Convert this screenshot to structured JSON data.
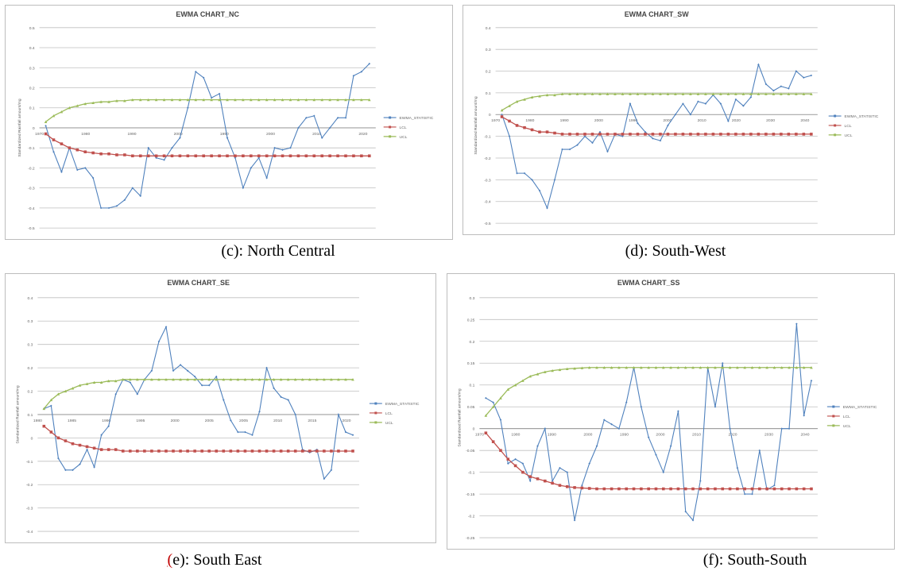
{
  "colors": {
    "statistic": "#4f81bd",
    "lcl": "#c0504d",
    "ucl": "#9bbb59",
    "grid": "#bfbfbf",
    "axis": "#8c8c8c"
  },
  "captions": {
    "c": {
      "paren": "(",
      "text": "c): North Central"
    },
    "d": {
      "paren": "(",
      "text": "d): South-West"
    },
    "e": {
      "paren": "(",
      "text": "e): South East"
    },
    "f": {
      "paren": "(",
      "text": "f): South-South"
    }
  },
  "chart_data": [
    {
      "id": "c",
      "type": "line",
      "title": "EWMA CHART_NC",
      "ylabel": "Standardized Rainfall amount/mg",
      "ylim": [
        -0.5,
        0.5
      ],
      "yticks": [
        "0.5",
        "0.4",
        "0.3",
        "0.2",
        "0.1",
        "0",
        "-0.1",
        "-0.2",
        "-0.3",
        "-0.4",
        "-0.5"
      ],
      "x_start": 1970,
      "xticks": [
        "1970",
        "1980",
        "1990",
        "2000",
        "1990",
        "2000",
        "2010",
        "2020"
      ],
      "legend": [
        "EWMA_STATISTIC",
        "LCL",
        "UCL"
      ],
      "series": [
        {
          "name": "EWMA_STATISTIC",
          "values": [
            0.01,
            -0.12,
            -0.22,
            -0.1,
            -0.21,
            -0.2,
            -0.25,
            -0.4,
            -0.4,
            -0.39,
            -0.36,
            -0.3,
            -0.34,
            -0.1,
            -0.15,
            -0.16,
            -0.1,
            -0.05,
            0.1,
            0.28,
            0.25,
            0.15,
            0.17,
            -0.05,
            -0.15,
            -0.3,
            -0.2,
            -0.15,
            -0.25,
            -0.1,
            -0.11,
            -0.1,
            0.0,
            0.05,
            0.06,
            -0.05,
            0,
            0.05,
            0.05,
            0.26,
            0.28,
            0.32
          ]
        },
        {
          "name": "LCL",
          "values": [
            -0.03,
            -0.06,
            -0.08,
            -0.1,
            -0.11,
            -0.12,
            -0.125,
            -0.13,
            -0.13,
            -0.135,
            -0.135,
            -0.14,
            -0.14,
            -0.14,
            -0.14,
            -0.14,
            -0.14,
            -0.14,
            -0.14,
            -0.14,
            -0.14,
            -0.14,
            -0.14,
            -0.14,
            -0.14,
            -0.14,
            -0.14,
            -0.14,
            -0.14,
            -0.14,
            -0.14,
            -0.14,
            -0.14,
            -0.14,
            -0.14,
            -0.14,
            -0.14,
            -0.14,
            -0.14,
            -0.14,
            -0.14,
            -0.14
          ]
        },
        {
          "name": "UCL",
          "values": [
            0.03,
            0.06,
            0.08,
            0.1,
            0.11,
            0.12,
            0.125,
            0.13,
            0.13,
            0.135,
            0.135,
            0.14,
            0.14,
            0.14,
            0.14,
            0.14,
            0.14,
            0.14,
            0.14,
            0.14,
            0.14,
            0.14,
            0.14,
            0.14,
            0.14,
            0.14,
            0.14,
            0.14,
            0.14,
            0.14,
            0.14,
            0.14,
            0.14,
            0.14,
            0.14,
            0.14,
            0.14,
            0.14,
            0.14,
            0.14,
            0.14,
            0.14
          ]
        }
      ]
    },
    {
      "id": "d",
      "type": "line",
      "title": "EWMA CHART_SW",
      "ylabel": "Standardized Rainfall amount/mg",
      "ylim": [
        -0.5,
        0.4
      ],
      "yticks": [
        "0.4",
        "0.3",
        "0.2",
        "0.1",
        "0",
        "-0.1",
        "-0.2",
        "-0.3",
        "-0.4",
        "-0.5"
      ],
      "x_start": 1970,
      "xticks": [
        "1970",
        "1980",
        "1990",
        "2000",
        "1990",
        "2000",
        "2010",
        "2020",
        "2030",
        "2040"
      ],
      "legend": [
        "EWMA_STATISTIC",
        "LCL",
        "UCL"
      ],
      "series": [
        {
          "name": "EWMA_STATISTIC",
          "values": [
            0.0,
            -0.1,
            -0.27,
            -0.27,
            -0.3,
            -0.35,
            -0.43,
            -0.3,
            -0.16,
            -0.16,
            -0.14,
            -0.1,
            -0.13,
            -0.08,
            -0.17,
            -0.09,
            -0.1,
            0.05,
            -0.04,
            -0.08,
            -0.11,
            -0.12,
            -0.05,
            0.0,
            0.05,
            0.0,
            0.06,
            0.05,
            0.09,
            0.05,
            -0.03,
            0.07,
            0.04,
            0.08,
            0.23,
            0.14,
            0.11,
            0.13,
            0.12,
            0.2,
            0.17,
            0.18
          ]
        },
        {
          "name": "LCL",
          "values": [
            -0.01,
            -0.03,
            -0.05,
            -0.06,
            -0.07,
            -0.08,
            -0.08,
            -0.085,
            -0.09,
            -0.09,
            -0.09,
            -0.09,
            -0.09,
            -0.09,
            -0.09,
            -0.09,
            -0.09,
            -0.09,
            -0.09,
            -0.09,
            -0.09,
            -0.09,
            -0.09,
            -0.09,
            -0.09,
            -0.09,
            -0.09,
            -0.09,
            -0.09,
            -0.09,
            -0.09,
            -0.09,
            -0.09,
            -0.09,
            -0.09,
            -0.09,
            -0.09,
            -0.09,
            -0.09,
            -0.09,
            -0.09,
            -0.09
          ]
        },
        {
          "name": "UCL",
          "values": [
            0.02,
            0.04,
            0.06,
            0.07,
            0.08,
            0.085,
            0.09,
            0.09,
            0.095,
            0.095,
            0.095,
            0.095,
            0.095,
            0.095,
            0.095,
            0.095,
            0.095,
            0.095,
            0.095,
            0.095,
            0.095,
            0.095,
            0.095,
            0.095,
            0.095,
            0.095,
            0.095,
            0.095,
            0.095,
            0.095,
            0.095,
            0.095,
            0.095,
            0.095,
            0.095,
            0.095,
            0.095,
            0.095,
            0.095,
            0.095,
            0.095,
            0.095
          ]
        }
      ]
    },
    {
      "id": "e",
      "type": "line",
      "title": "EWMA CHART_SE",
      "ylabel": "Standardized Rainfall amount/mg",
      "ylim": [
        -0.4,
        0.4
      ],
      "yticks": [
        "0.4",
        "0.3",
        "0.3",
        "0.2",
        "0.2",
        "0.1",
        "0",
        "-0.1",
        "-0.2",
        "-0.3",
        "-0.4"
      ],
      "x_start": 1980,
      "xticks": [
        "1980",
        "1985",
        "1990",
        "1995",
        "2000",
        "2005",
        "2005",
        "2010",
        "2015",
        "2020"
      ],
      "legend": [
        "EWMA_STATISTIC",
        "LCL",
        "UCL"
      ],
      "series": [
        {
          "name": "EWMA_STATISTIC",
          "values": [
            0.02,
            0.03,
            -0.15,
            -0.19,
            -0.19,
            -0.17,
            -0.12,
            -0.18,
            -0.07,
            -0.04,
            0.07,
            0.12,
            0.11,
            0.07,
            0.12,
            0.15,
            0.25,
            0.3,
            0.15,
            0.17,
            0.15,
            0.13,
            0.1,
            0.1,
            0.13,
            0.05,
            -0.02,
            -0.06,
            -0.06,
            -0.07,
            0.01,
            0.16,
            0.09,
            0.06,
            0.05,
            0.0,
            -0.12,
            -0.13,
            -0.12,
            -0.22,
            -0.19,
            0.0,
            -0.06,
            -0.07
          ]
        },
        {
          "name": "LCL",
          "values": [
            -0.04,
            -0.06,
            -0.08,
            -0.09,
            -0.1,
            -0.105,
            -0.11,
            -0.115,
            -0.12,
            -0.12,
            -0.12,
            -0.125,
            -0.125,
            -0.125,
            -0.125,
            -0.125,
            -0.125,
            -0.125,
            -0.125,
            -0.125,
            -0.125,
            -0.125,
            -0.125,
            -0.125,
            -0.125,
            -0.125,
            -0.125,
            -0.125,
            -0.125,
            -0.125,
            -0.125,
            -0.125,
            -0.125,
            -0.125,
            -0.125,
            -0.125,
            -0.125,
            -0.125,
            -0.125,
            -0.125,
            -0.125,
            -0.125,
            -0.125,
            -0.125
          ]
        },
        {
          "name": "UCL",
          "values": [
            0.02,
            0.05,
            0.07,
            0.08,
            0.09,
            0.1,
            0.105,
            0.11,
            0.11,
            0.115,
            0.115,
            0.12,
            0.12,
            0.12,
            0.12,
            0.12,
            0.12,
            0.12,
            0.12,
            0.12,
            0.12,
            0.12,
            0.12,
            0.12,
            0.12,
            0.12,
            0.12,
            0.12,
            0.12,
            0.12,
            0.12,
            0.12,
            0.12,
            0.12,
            0.12,
            0.12,
            0.12,
            0.12,
            0.12,
            0.12,
            0.12,
            0.12,
            0.12,
            0.12
          ]
        }
      ]
    },
    {
      "id": "f",
      "type": "line",
      "title": "EWMA CHART_SS",
      "ylabel": "Standardized Rainfall amount/mg",
      "ylim": [
        -0.25,
        0.3
      ],
      "yticks": [
        "0.3",
        "0.25",
        "0.2",
        "0.15",
        "0.1",
        "0.05",
        "0",
        "-0.05",
        "-0.1",
        "-0.15",
        "-0.2",
        "-0.25"
      ],
      "x_start": 1970,
      "xticks": [
        "1970",
        "1980",
        "1990",
        "2000",
        "1990",
        "2000",
        "2010",
        "2020",
        "2030",
        "2040"
      ],
      "legend": [
        "EWMA_STATISTIC",
        "LCL",
        "UCL"
      ],
      "series": [
        {
          "name": "EWMA_STATISTIC",
          "values": [
            0.07,
            0.06,
            0.02,
            -0.08,
            -0.07,
            -0.08,
            -0.12,
            -0.04,
            0.0,
            -0.12,
            -0.09,
            -0.1,
            -0.21,
            -0.13,
            -0.08,
            -0.04,
            0.02,
            0.01,
            0.0,
            0.06,
            0.14,
            0.05,
            -0.02,
            -0.06,
            -0.1,
            -0.04,
            0.04,
            -0.19,
            -0.21,
            -0.12,
            0.14,
            0.05,
            0.15,
            0.0,
            -0.09,
            -0.15,
            -0.15,
            -0.05,
            -0.14,
            -0.13,
            0.0,
            0.0,
            0.24,
            0.03,
            0.11
          ]
        },
        {
          "name": "LCL",
          "values": [
            -0.01,
            -0.03,
            -0.05,
            -0.07,
            -0.085,
            -0.1,
            -0.11,
            -0.115,
            -0.12,
            -0.125,
            -0.13,
            -0.133,
            -0.135,
            -0.136,
            -0.137,
            -0.138,
            -0.138,
            -0.138,
            -0.138,
            -0.138,
            -0.138,
            -0.138,
            -0.138,
            -0.138,
            -0.138,
            -0.138,
            -0.138,
            -0.138,
            -0.138,
            -0.138,
            -0.138,
            -0.138,
            -0.138,
            -0.138,
            -0.138,
            -0.138,
            -0.138,
            -0.138,
            -0.138,
            -0.138,
            -0.138,
            -0.138,
            -0.138,
            -0.138,
            -0.138
          ]
        },
        {
          "name": "UCL",
          "values": [
            0.03,
            0.05,
            0.07,
            0.09,
            0.1,
            0.11,
            0.12,
            0.125,
            0.13,
            0.133,
            0.135,
            0.137,
            0.138,
            0.139,
            0.14,
            0.14,
            0.14,
            0.14,
            0.14,
            0.14,
            0.14,
            0.14,
            0.14,
            0.14,
            0.14,
            0.14,
            0.14,
            0.14,
            0.14,
            0.14,
            0.14,
            0.14,
            0.14,
            0.14,
            0.14,
            0.14,
            0.14,
            0.14,
            0.14,
            0.14,
            0.14,
            0.14,
            0.14,
            0.14,
            0.14
          ]
        }
      ]
    }
  ]
}
